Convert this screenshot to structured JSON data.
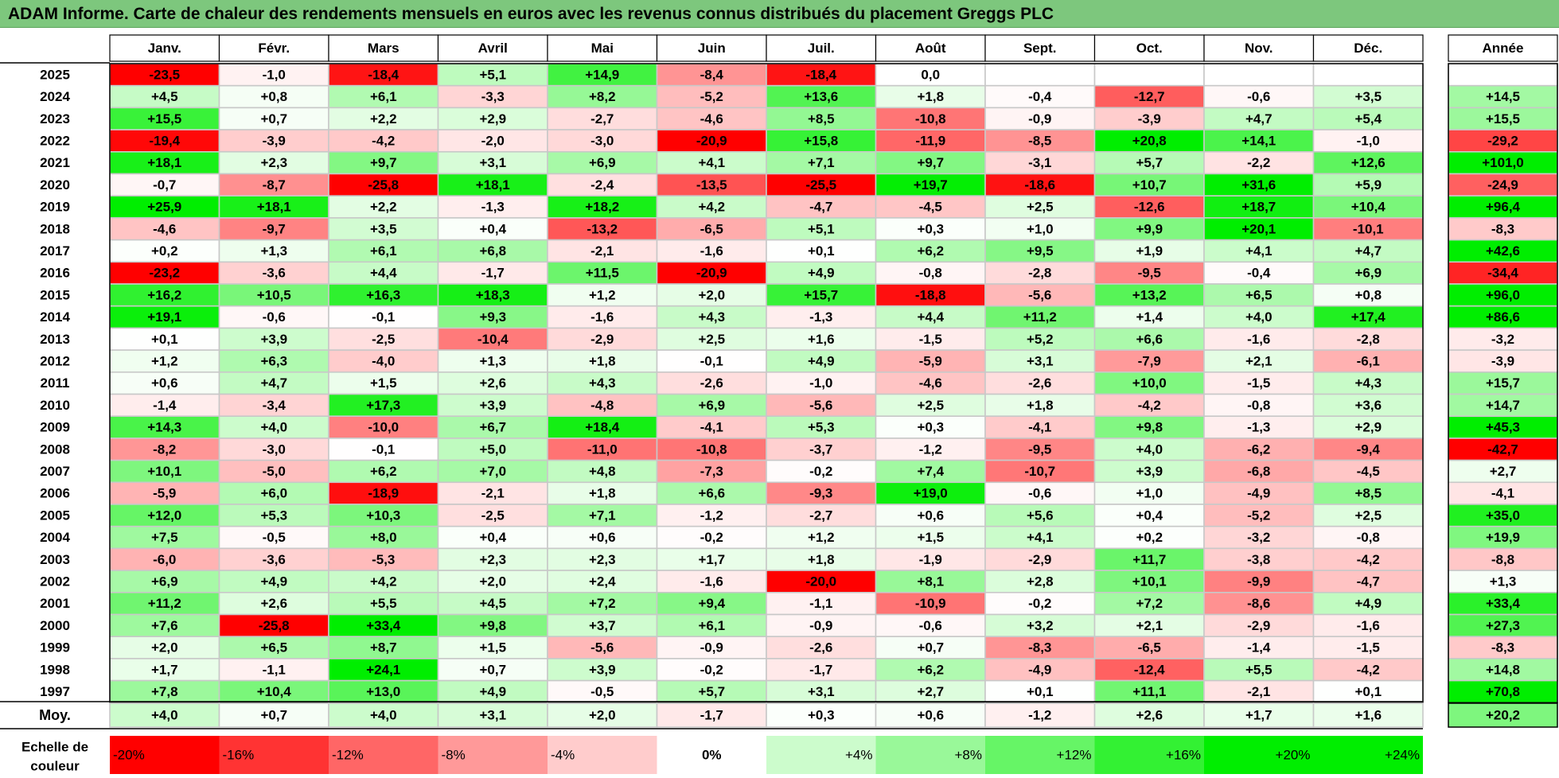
{
  "title": "ADAM Informe. Carte de chaleur des rendements mensuels en euros avec les revenus connus distribués du placement Greggs PLC",
  "chart_data": {
    "type": "heatmap",
    "columns": [
      "Janv.",
      "Févr.",
      "Mars",
      "Avril",
      "Mai",
      "Juin",
      "Juil.",
      "Août",
      "Sept.",
      "Oct.",
      "Nov.",
      "Déc."
    ],
    "year_header": "Année",
    "rows": [
      {
        "label": "2025",
        "values": [
          -23.5,
          -1.0,
          -18.4,
          5.1,
          14.9,
          -8.4,
          -18.4,
          0.0,
          null,
          null,
          null,
          null
        ],
        "annual": null
      },
      {
        "label": "2024",
        "values": [
          4.5,
          0.8,
          6.1,
          -3.3,
          8.2,
          -5.2,
          13.6,
          1.8,
          -0.4,
          -12.7,
          -0.6,
          3.5
        ],
        "annual": 14.5
      },
      {
        "label": "2023",
        "values": [
          15.5,
          0.7,
          2.2,
          2.9,
          -2.7,
          -4.6,
          8.5,
          -10.8,
          -0.9,
          -3.9,
          4.7,
          5.4
        ],
        "annual": 15.5
      },
      {
        "label": "2022",
        "values": [
          -19.4,
          -3.9,
          -4.2,
          -2.0,
          -3.0,
          -20.9,
          15.8,
          -11.9,
          -8.5,
          20.8,
          14.1,
          -1.0
        ],
        "annual": -29.2
      },
      {
        "label": "2021",
        "values": [
          18.1,
          2.3,
          9.7,
          3.1,
          6.9,
          4.1,
          7.1,
          9.7,
          -3.1,
          5.7,
          -2.2,
          12.6
        ],
        "annual": 101.0
      },
      {
        "label": "2020",
        "values": [
          -0.7,
          -8.7,
          -25.8,
          18.1,
          -2.4,
          -13.5,
          -25.5,
          19.7,
          -18.6,
          10.7,
          31.6,
          5.9
        ],
        "annual": -24.9
      },
      {
        "label": "2019",
        "values": [
          25.9,
          18.1,
          2.2,
          -1.3,
          18.2,
          4.2,
          -4.7,
          -4.5,
          2.5,
          -12.6,
          18.7,
          10.4
        ],
        "annual": 96.4
      },
      {
        "label": "2018",
        "values": [
          -4.6,
          -9.7,
          3.5,
          0.4,
          -13.2,
          -6.5,
          5.1,
          0.3,
          1.0,
          9.9,
          20.1,
          -10.1
        ],
        "annual": -8.3
      },
      {
        "label": "2017",
        "values": [
          0.2,
          1.3,
          6.1,
          6.8,
          -2.1,
          -1.6,
          0.1,
          6.2,
          9.5,
          1.9,
          4.1,
          4.7
        ],
        "annual": 42.6
      },
      {
        "label": "2016",
        "values": [
          -23.2,
          -3.6,
          4.4,
          -1.7,
          11.5,
          -20.9,
          4.9,
          -0.8,
          -2.8,
          -9.5,
          -0.4,
          6.9
        ],
        "annual": -34.4
      },
      {
        "label": "2015",
        "values": [
          16.2,
          10.5,
          16.3,
          18.3,
          1.2,
          2.0,
          15.7,
          -18.8,
          -5.6,
          13.2,
          6.5,
          0.8
        ],
        "annual": 96.0
      },
      {
        "label": "2014",
        "values": [
          19.1,
          -0.6,
          -0.1,
          9.3,
          -1.6,
          4.3,
          -1.3,
          4.4,
          11.2,
          1.4,
          4.0,
          17.4
        ],
        "annual": 86.6
      },
      {
        "label": "2013",
        "values": [
          0.1,
          3.9,
          -2.5,
          -10.4,
          -2.9,
          2.5,
          1.6,
          -1.5,
          5.2,
          6.6,
          -1.6,
          -2.8
        ],
        "annual": -3.2
      },
      {
        "label": "2012",
        "values": [
          1.2,
          6.3,
          -4.0,
          1.3,
          1.8,
          -0.1,
          4.9,
          -5.9,
          3.1,
          -7.9,
          2.1,
          -6.1
        ],
        "annual": -3.9
      },
      {
        "label": "2011",
        "values": [
          0.6,
          4.7,
          1.5,
          2.6,
          4.3,
          -2.6,
          -1.0,
          -4.6,
          -2.6,
          10.0,
          -1.5,
          4.3
        ],
        "annual": 15.7
      },
      {
        "label": "2010",
        "values": [
          -1.4,
          -3.4,
          17.3,
          3.9,
          -4.8,
          6.9,
          -5.6,
          2.5,
          1.8,
          -4.2,
          -0.8,
          3.6
        ],
        "annual": 14.7
      },
      {
        "label": "2009",
        "values": [
          14.3,
          4.0,
          -10.0,
          6.7,
          18.4,
          -4.1,
          5.3,
          0.3,
          -4.1,
          9.8,
          -1.3,
          2.9
        ],
        "annual": 45.3
      },
      {
        "label": "2008",
        "values": [
          -8.2,
          -3.0,
          -0.1,
          5.0,
          -11.0,
          -10.8,
          -3.7,
          -1.2,
          -9.5,
          4.0,
          -6.2,
          -9.4
        ],
        "annual": -42.7
      },
      {
        "label": "2007",
        "values": [
          10.1,
          -5.0,
          6.2,
          7.0,
          4.8,
          -7.3,
          -0.2,
          7.4,
          -10.7,
          3.9,
          -6.8,
          -4.5
        ],
        "annual": 2.7
      },
      {
        "label": "2006",
        "values": [
          -5.9,
          6.0,
          -18.9,
          -2.1,
          1.8,
          6.6,
          -9.3,
          19.0,
          -0.6,
          1.0,
          -4.9,
          8.5
        ],
        "annual": -4.1
      },
      {
        "label": "2005",
        "values": [
          12.0,
          5.3,
          10.3,
          -2.5,
          7.1,
          -1.2,
          -2.7,
          0.6,
          5.6,
          0.4,
          -5.2,
          2.5
        ],
        "annual": 35.0
      },
      {
        "label": "2004",
        "values": [
          7.5,
          -0.5,
          8.0,
          0.4,
          0.6,
          -0.2,
          1.2,
          1.5,
          4.1,
          0.2,
          -3.2,
          -0.8
        ],
        "annual": 19.9
      },
      {
        "label": "2003",
        "values": [
          -6.0,
          -3.6,
          -5.3,
          2.3,
          2.3,
          1.7,
          1.8,
          -1.9,
          -2.9,
          11.7,
          -3.8,
          -4.2
        ],
        "annual": -8.8
      },
      {
        "label": "2002",
        "values": [
          6.9,
          4.9,
          4.2,
          2.0,
          2.4,
          -1.6,
          -20.0,
          8.1,
          2.8,
          10.1,
          -9.9,
          -4.7
        ],
        "annual": 1.3
      },
      {
        "label": "2001",
        "values": [
          11.2,
          2.6,
          5.5,
          4.5,
          7.2,
          9.4,
          -1.1,
          -10.9,
          -0.2,
          7.2,
          -8.6,
          4.9
        ],
        "annual": 33.4
      },
      {
        "label": "2000",
        "values": [
          7.6,
          -25.8,
          33.4,
          9.8,
          3.7,
          6.1,
          -0.9,
          -0.6,
          3.2,
          2.1,
          -2.9,
          -1.6
        ],
        "annual": 27.3
      },
      {
        "label": "1999",
        "values": [
          2.0,
          6.5,
          8.7,
          1.5,
          -5.6,
          -0.9,
          -2.6,
          0.7,
          -8.3,
          -6.5,
          -1.4,
          -1.5
        ],
        "annual": -8.3
      },
      {
        "label": "1998",
        "values": [
          1.7,
          -1.1,
          24.1,
          0.7,
          3.9,
          -0.2,
          -1.7,
          6.2,
          -4.9,
          -12.4,
          5.5,
          -4.2
        ],
        "annual": 14.8
      },
      {
        "label": "1997",
        "values": [
          7.8,
          10.4,
          13.0,
          4.9,
          -0.5,
          5.7,
          3.1,
          2.7,
          0.1,
          11.1,
          -2.1,
          0.1
        ],
        "annual": 70.8
      }
    ],
    "average": {
      "label": "Moy.",
      "values": [
        4.0,
        0.7,
        4.0,
        3.1,
        2.0,
        -1.7,
        0.3,
        0.6,
        -1.2,
        2.6,
        1.7,
        1.6
      ],
      "annual": 20.2
    },
    "scale": {
      "label_line1": "Echelle de",
      "label_line2": "couleur",
      "items": [
        {
          "label": "-20%",
          "value": -20
        },
        {
          "label": "-16%",
          "value": -16
        },
        {
          "label": "-12%",
          "value": -12
        },
        {
          "label": "-8%",
          "value": -8
        },
        {
          "label": "-4%",
          "value": -4
        },
        {
          "label": "0%",
          "value": 0
        },
        {
          "label": "+4%",
          "value": 4
        },
        {
          "label": "+8%",
          "value": 8
        },
        {
          "label": "+12%",
          "value": 12
        },
        {
          "label": "+16%",
          "value": 16
        },
        {
          "label": "+20%",
          "value": 20
        },
        {
          "label": "+24%",
          "value": 24
        }
      ]
    },
    "colors": {
      "negative_max": "#ff0000",
      "positive_max": "#00ee00",
      "neutral": "#ffffff",
      "title_background": "#7dc77d"
    }
  }
}
